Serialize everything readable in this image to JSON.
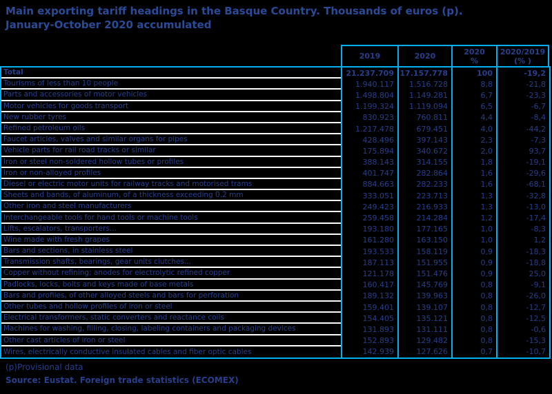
{
  "header": {
    "title_line1": "Main exporting tariff headings in the Basque Country. Thousands of euros (p).",
    "title_line2": "January-October 2020 accumulated"
  },
  "footnotes": {
    "provisional": "(p)Provisional data",
    "source": "Source: Eustat. Foreign trade statistics (ECOMEX)"
  },
  "colors": {
    "background": "#000000",
    "cyan": "#00B0F0",
    "navy_title": "#2B4A97",
    "navy_text": "#283F8C",
    "separator": "#FFFFFF"
  },
  "chart_data": {
    "type": "table",
    "title": "Main exporting tariff headings in the Basque Country. Thousands of euros (p). January-October 2020 accumulated",
    "columns": [
      "2019",
      "2020",
      "2020\n%",
      "2020/2019\n(% )"
    ],
    "rows": [
      {
        "label": "Total",
        "v2019": "21.237.709",
        "v2020": "17.157.778",
        "pct": "100",
        "change": "-19,2",
        "bold": true
      },
      {
        "label": "Tourisms of less than 10 people",
        "v2019": "1.940.117",
        "v2020": "1.516.728",
        "pct": "8,8",
        "change": "-21,8"
      },
      {
        "label": "Parts and accessories of motor vehicles",
        "v2019": "1.498.804",
        "v2020": "1.149.281",
        "pct": "6,7",
        "change": "-23,3"
      },
      {
        "label": "Motor vehicles for goods transport",
        "v2019": "1.199.324",
        "v2020": "1.119.094",
        "pct": "6,5",
        "change": "-6,7"
      },
      {
        "label": "New rubber tyres",
        "v2019": "830.923",
        "v2020": "760.811",
        "pct": "4,4",
        "change": "-8,4"
      },
      {
        "label": "Refined petroleum oils",
        "v2019": "1.217.478",
        "v2020": "679.451",
        "pct": "4,0",
        "change": "-44,2"
      },
      {
        "label": "Faucet articles, valves and similar organs for pipes",
        "v2019": "428.496",
        "v2020": "397.143",
        "pct": "2,3",
        "change": "-7,3"
      },
      {
        "label": "Vehicle parts for rail road tracks or similar",
        "v2019": "175.894",
        "v2020": "340.672",
        "pct": "2,0",
        "change": "93,7"
      },
      {
        "label": "Iron or steel non-soldered hollow tubes or profiles",
        "v2019": "388.143",
        "v2020": "314.155",
        "pct": "1,8",
        "change": "-19,1"
      },
      {
        "label": "Iron or non-alloyed profiles",
        "v2019": "401.747",
        "v2020": "282.864",
        "pct": "1,6",
        "change": "-29,6"
      },
      {
        "label": "Diesel or electric motor units for railway tracks and motorised trams",
        "v2019": "884.663",
        "v2020": "282.233",
        "pct": "1,6",
        "change": "-68,1"
      },
      {
        "label": "Sheets and bands, of aluminum, of a thickness exceeding 0.2 mm",
        "v2019": "333.051",
        "v2020": "223.713",
        "pct": "1,3",
        "change": "-32,8"
      },
      {
        "label": "Other iron and steel manufacturers",
        "v2019": "249.423",
        "v2020": "216.933",
        "pct": "1,3",
        "change": "-13,0"
      },
      {
        "label": "Interchangeable tools for hand tools or machine tools",
        "v2019": "259.458",
        "v2020": "214.284",
        "pct": "1,2",
        "change": "-17,4"
      },
      {
        "label": "Lifts, escalators, transporters...",
        "v2019": "193.180",
        "v2020": "177.165",
        "pct": "1,0",
        "change": "-8,3"
      },
      {
        "label": "Wine made with fresh grapes",
        "v2019": "161.280",
        "v2020": "163.150",
        "pct": "1,0",
        "change": "1,2"
      },
      {
        "label": "Bars and sections, in stainless steel",
        "v2019": "193.533",
        "v2020": "158.119",
        "pct": "0,9",
        "change": "-18,3"
      },
      {
        "label": "Transmission shafts, bearings, gear units clutches...",
        "v2019": "187.113",
        "v2020": "151.955",
        "pct": "0,9",
        "change": "-18,8"
      },
      {
        "label": "Copper without refining; anodes for electrolytic refined copper",
        "v2019": "121.178",
        "v2020": "151.476",
        "pct": "0,9",
        "change": "25,0"
      },
      {
        "label": "Padlocks, locks, bolts and keys made of base metals",
        "v2019": "160.417",
        "v2020": "145.769",
        "pct": "0,8",
        "change": "-9,1"
      },
      {
        "label": "Bars and profiles, of other alloyed steels and bars for perforation",
        "v2019": "189.132",
        "v2020": "139.963",
        "pct": "0,8",
        "change": "-26,0"
      },
      {
        "label": "Other tubes and hollow profiles of iron or steel",
        "v2019": "159.401",
        "v2020": "139.107",
        "pct": "0,8",
        "change": "-12,7"
      },
      {
        "label": "Electrical transformers, static converters and reactance coils",
        "v2019": "154.405",
        "v2020": "135.121",
        "pct": "0,8",
        "change": "-12,5"
      },
      {
        "label": "Machines for washing, filling, closing, labeling containers and packaging devices",
        "v2019": "131.893",
        "v2020": "131.111",
        "pct": "0,8",
        "change": "-0,6"
      },
      {
        "label": "Other cast articles of iron or steel",
        "v2019": "152.893",
        "v2020": "129.482",
        "pct": "0,8",
        "change": "-15,3"
      },
      {
        "label": "Wires, electrically conductive insulated cables and fiber optic cables",
        "v2019": "142.939",
        "v2020": "127.626",
        "pct": "0,7",
        "change": "-10,7"
      }
    ]
  }
}
